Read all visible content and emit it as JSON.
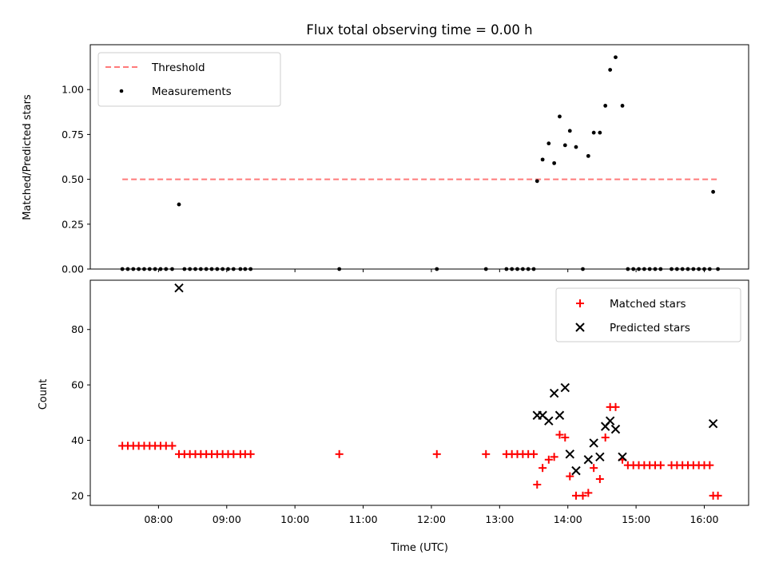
{
  "chart_data": [
    {
      "type": "scatter",
      "title": "Flux total observing time = 0.00 h",
      "xlabel": "",
      "ylabel": "Matched/Predicted stars",
      "x_axis": "time (hours UTC)",
      "ylim": [
        0,
        1.25
      ],
      "yticks": [
        0.0,
        0.25,
        0.5,
        0.75,
        1.0
      ],
      "ytick_labels": [
        "0.00",
        "0.25",
        "0.50",
        "0.75",
        "1.00"
      ],
      "legend_position": "top-left",
      "threshold": {
        "name": "Threshold",
        "value": 0.5,
        "x_range": [
          7.47,
          16.2
        ],
        "color": "#ff7a7a",
        "style": "dashed"
      },
      "series": [
        {
          "name": "Measurements",
          "color": "#000000",
          "points": [
            [
              7.47,
              0
            ],
            [
              7.55,
              0
            ],
            [
              7.63,
              0
            ],
            [
              7.71,
              0
            ],
            [
              7.79,
              0
            ],
            [
              7.87,
              0
            ],
            [
              7.95,
              0
            ],
            [
              8.03,
              0
            ],
            [
              8.11,
              0
            ],
            [
              8.2,
              0
            ],
            [
              8.3,
              0.36
            ],
            [
              8.38,
              0
            ],
            [
              8.46,
              0
            ],
            [
              8.54,
              0
            ],
            [
              8.62,
              0
            ],
            [
              8.7,
              0
            ],
            [
              8.78,
              0
            ],
            [
              8.86,
              0
            ],
            [
              8.94,
              0
            ],
            [
              9.02,
              0
            ],
            [
              9.1,
              0
            ],
            [
              9.2,
              0
            ],
            [
              9.27,
              0
            ],
            [
              9.35,
              0
            ],
            [
              10.65,
              0
            ],
            [
              12.08,
              0
            ],
            [
              12.8,
              0
            ],
            [
              13.1,
              0
            ],
            [
              13.18,
              0
            ],
            [
              13.26,
              0
            ],
            [
              13.34,
              0
            ],
            [
              13.42,
              0
            ],
            [
              13.5,
              0
            ],
            [
              13.55,
              0.49
            ],
            [
              13.63,
              0.61
            ],
            [
              13.72,
              0.7
            ],
            [
              13.8,
              0.59
            ],
            [
              13.88,
              0.85
            ],
            [
              13.96,
              0.69
            ],
            [
              14.03,
              0.77
            ],
            [
              14.12,
              0.68
            ],
            [
              14.22,
              0
            ],
            [
              14.3,
              0.63
            ],
            [
              14.38,
              0.76
            ],
            [
              14.47,
              0.76
            ],
            [
              14.55,
              0.91
            ],
            [
              14.62,
              1.11
            ],
            [
              14.7,
              1.18
            ],
            [
              14.8,
              0.91
            ],
            [
              14.88,
              0
            ],
            [
              14.96,
              0
            ],
            [
              15.04,
              0
            ],
            [
              15.12,
              0
            ],
            [
              15.2,
              0
            ],
            [
              15.28,
              0
            ],
            [
              15.36,
              0
            ],
            [
              15.52,
              0
            ],
            [
              15.6,
              0
            ],
            [
              15.68,
              0
            ],
            [
              15.76,
              0
            ],
            [
              15.84,
              0
            ],
            [
              15.92,
              0
            ],
            [
              16.0,
              0
            ],
            [
              16.08,
              0
            ],
            [
              16.13,
              0.43
            ],
            [
              16.2,
              0
            ]
          ]
        }
      ]
    },
    {
      "type": "scatter",
      "title": "",
      "xlabel": "Time (UTC)",
      "ylabel": "Count",
      "x_axis": "time (hours UTC)",
      "xlim": [
        7.0,
        16.65
      ],
      "xticks": [
        8,
        9,
        10,
        11,
        12,
        13,
        14,
        15,
        16
      ],
      "xtick_labels": [
        "08:00",
        "09:00",
        "10:00",
        "11:00",
        "12:00",
        "13:00",
        "14:00",
        "15:00",
        "16:00"
      ],
      "ylim": [
        16.5,
        97.8
      ],
      "yticks": [
        20,
        40,
        60,
        80
      ],
      "ytick_labels": [
        "20",
        "40",
        "60",
        "80"
      ],
      "legend_position": "top-right",
      "series": [
        {
          "name": "Matched stars",
          "color": "#ff0000",
          "marker": "plus",
          "points": [
            [
              7.47,
              38
            ],
            [
              7.55,
              38
            ],
            [
              7.63,
              38
            ],
            [
              7.71,
              38
            ],
            [
              7.79,
              38
            ],
            [
              7.87,
              38
            ],
            [
              7.95,
              38
            ],
            [
              8.03,
              38
            ],
            [
              8.11,
              38
            ],
            [
              8.2,
              38
            ],
            [
              8.3,
              35
            ],
            [
              8.38,
              35
            ],
            [
              8.46,
              35
            ],
            [
              8.54,
              35
            ],
            [
              8.62,
              35
            ],
            [
              8.7,
              35
            ],
            [
              8.78,
              35
            ],
            [
              8.86,
              35
            ],
            [
              8.94,
              35
            ],
            [
              9.02,
              35
            ],
            [
              9.1,
              35
            ],
            [
              9.2,
              35
            ],
            [
              9.27,
              35
            ],
            [
              9.35,
              35
            ],
            [
              10.65,
              35
            ],
            [
              12.08,
              35
            ],
            [
              12.8,
              35
            ],
            [
              13.1,
              35
            ],
            [
              13.18,
              35
            ],
            [
              13.26,
              35
            ],
            [
              13.34,
              35
            ],
            [
              13.42,
              35
            ],
            [
              13.5,
              35
            ],
            [
              13.55,
              24
            ],
            [
              13.63,
              30
            ],
            [
              13.72,
              33
            ],
            [
              13.8,
              34
            ],
            [
              13.88,
              42
            ],
            [
              13.96,
              41
            ],
            [
              14.03,
              27
            ],
            [
              14.12,
              20
            ],
            [
              14.22,
              20
            ],
            [
              14.3,
              21
            ],
            [
              14.38,
              30
            ],
            [
              14.47,
              26
            ],
            [
              14.55,
              41
            ],
            [
              14.62,
              52
            ],
            [
              14.7,
              52
            ],
            [
              14.8,
              33
            ],
            [
              14.88,
              31
            ],
            [
              14.96,
              31
            ],
            [
              15.04,
              31
            ],
            [
              15.12,
              31
            ],
            [
              15.2,
              31
            ],
            [
              15.28,
              31
            ],
            [
              15.36,
              31
            ],
            [
              15.52,
              31
            ],
            [
              15.6,
              31
            ],
            [
              15.68,
              31
            ],
            [
              15.76,
              31
            ],
            [
              15.84,
              31
            ],
            [
              15.92,
              31
            ],
            [
              16.0,
              31
            ],
            [
              16.08,
              31
            ],
            [
              16.13,
              20
            ],
            [
              16.2,
              20
            ]
          ]
        },
        {
          "name": "Predicted stars",
          "color": "#000000",
          "marker": "x",
          "points": [
            [
              8.3,
              95
            ],
            [
              13.55,
              49
            ],
            [
              13.63,
              49
            ],
            [
              13.72,
              47
            ],
            [
              13.8,
              57
            ],
            [
              13.88,
              49
            ],
            [
              13.96,
              59
            ],
            [
              14.03,
              35
            ],
            [
              14.12,
              29
            ],
            [
              14.3,
              33
            ],
            [
              14.38,
              39
            ],
            [
              14.47,
              34
            ],
            [
              14.55,
              45
            ],
            [
              14.62,
              47
            ],
            [
              14.7,
              44
            ],
            [
              14.8,
              34
            ],
            [
              16.13,
              46
            ]
          ]
        }
      ]
    }
  ]
}
